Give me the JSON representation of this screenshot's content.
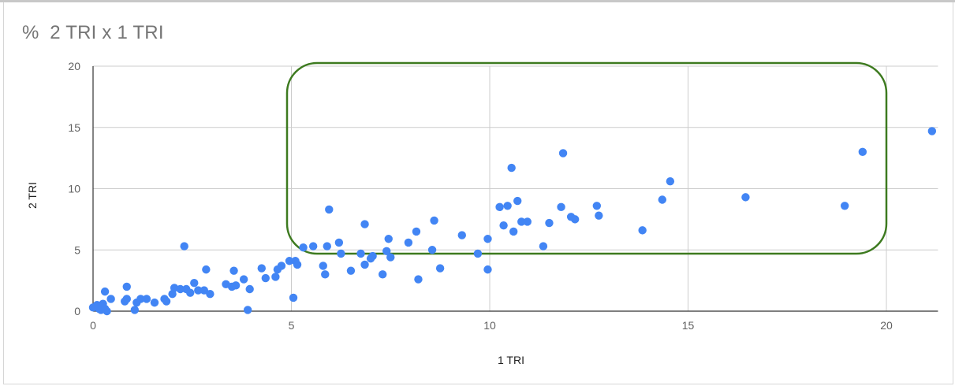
{
  "chart_data": {
    "type": "scatter",
    "title": "%  2 TRI x 1 TRI",
    "xlabel": "1 TRI",
    "ylabel": "2 TRI",
    "xlim": [
      0,
      21.3
    ],
    "ylim": [
      0,
      20
    ],
    "x_ticks": [
      "0",
      "5",
      "10",
      "15",
      "20"
    ],
    "y_ticks": [
      "0",
      "5",
      "10",
      "15",
      "20"
    ],
    "grid": true,
    "series_color": "#4285f4",
    "annotation_color": "#3d7a1f",
    "points": [
      [
        0.0,
        0.3
      ],
      [
        0.1,
        0.5
      ],
      [
        0.15,
        0.2
      ],
      [
        0.2,
        0.1
      ],
      [
        0.25,
        0.6
      ],
      [
        0.3,
        0.2
      ],
      [
        0.35,
        0.0
      ],
      [
        0.3,
        1.6
      ],
      [
        0.45,
        1.0
      ],
      [
        0.8,
        0.8
      ],
      [
        0.85,
        1.0
      ],
      [
        0.85,
        2.0
      ],
      [
        1.05,
        0.1
      ],
      [
        1.1,
        0.7
      ],
      [
        1.2,
        1.0
      ],
      [
        1.35,
        1.0
      ],
      [
        1.55,
        0.7
      ],
      [
        1.8,
        1.0
      ],
      [
        1.85,
        0.8
      ],
      [
        2.0,
        1.4
      ],
      [
        2.05,
        1.9
      ],
      [
        2.2,
        1.8
      ],
      [
        2.35,
        1.8
      ],
      [
        2.3,
        5.3
      ],
      [
        2.45,
        1.5
      ],
      [
        2.55,
        2.3
      ],
      [
        2.65,
        1.7
      ],
      [
        2.8,
        1.7
      ],
      [
        2.85,
        3.4
      ],
      [
        2.95,
        1.4
      ],
      [
        3.35,
        2.2
      ],
      [
        3.5,
        2.0
      ],
      [
        3.55,
        3.3
      ],
      [
        3.6,
        2.1
      ],
      [
        3.8,
        2.6
      ],
      [
        3.9,
        0.1
      ],
      [
        3.95,
        1.8
      ],
      [
        4.25,
        3.5
      ],
      [
        4.35,
        2.7
      ],
      [
        4.6,
        2.8
      ],
      [
        4.65,
        3.4
      ],
      [
        4.75,
        3.7
      ],
      [
        4.95,
        4.1
      ],
      [
        5.1,
        4.1
      ],
      [
        5.05,
        1.1
      ],
      [
        5.15,
        3.8
      ],
      [
        5.3,
        5.2
      ],
      [
        5.55,
        5.3
      ],
      [
        5.8,
        3.7
      ],
      [
        5.85,
        3.0
      ],
      [
        5.9,
        5.3
      ],
      [
        5.95,
        8.3
      ],
      [
        6.2,
        5.6
      ],
      [
        6.25,
        4.7
      ],
      [
        6.5,
        3.3
      ],
      [
        6.75,
        4.7
      ],
      [
        6.85,
        3.8
      ],
      [
        6.85,
        7.1
      ],
      [
        7.0,
        4.3
      ],
      [
        7.05,
        4.5
      ],
      [
        7.3,
        3.0
      ],
      [
        7.4,
        4.9
      ],
      [
        7.45,
        5.9
      ],
      [
        7.5,
        4.4
      ],
      [
        7.95,
        5.6
      ],
      [
        8.15,
        6.5
      ],
      [
        8.2,
        2.6
      ],
      [
        8.55,
        5.0
      ],
      [
        8.6,
        7.4
      ],
      [
        8.75,
        3.5
      ],
      [
        9.3,
        6.2
      ],
      [
        9.7,
        4.7
      ],
      [
        9.95,
        5.9
      ],
      [
        9.95,
        3.4
      ],
      [
        10.25,
        8.5
      ],
      [
        10.35,
        7.0
      ],
      [
        10.45,
        8.6
      ],
      [
        10.55,
        11.7
      ],
      [
        10.6,
        6.5
      ],
      [
        10.7,
        9.0
      ],
      [
        10.8,
        7.3
      ],
      [
        10.95,
        7.3
      ],
      [
        11.35,
        5.3
      ],
      [
        11.5,
        7.2
      ],
      [
        11.8,
        8.5
      ],
      [
        11.85,
        12.9
      ],
      [
        12.05,
        7.7
      ],
      [
        12.15,
        7.5
      ],
      [
        12.7,
        8.6
      ],
      [
        12.75,
        7.8
      ],
      [
        13.85,
        6.6
      ],
      [
        14.35,
        9.1
      ],
      [
        14.55,
        10.6
      ],
      [
        16.45,
        9.3
      ],
      [
        18.95,
        8.6
      ],
      [
        19.4,
        13.0
      ],
      [
        21.15,
        14.7
      ]
    ]
  }
}
